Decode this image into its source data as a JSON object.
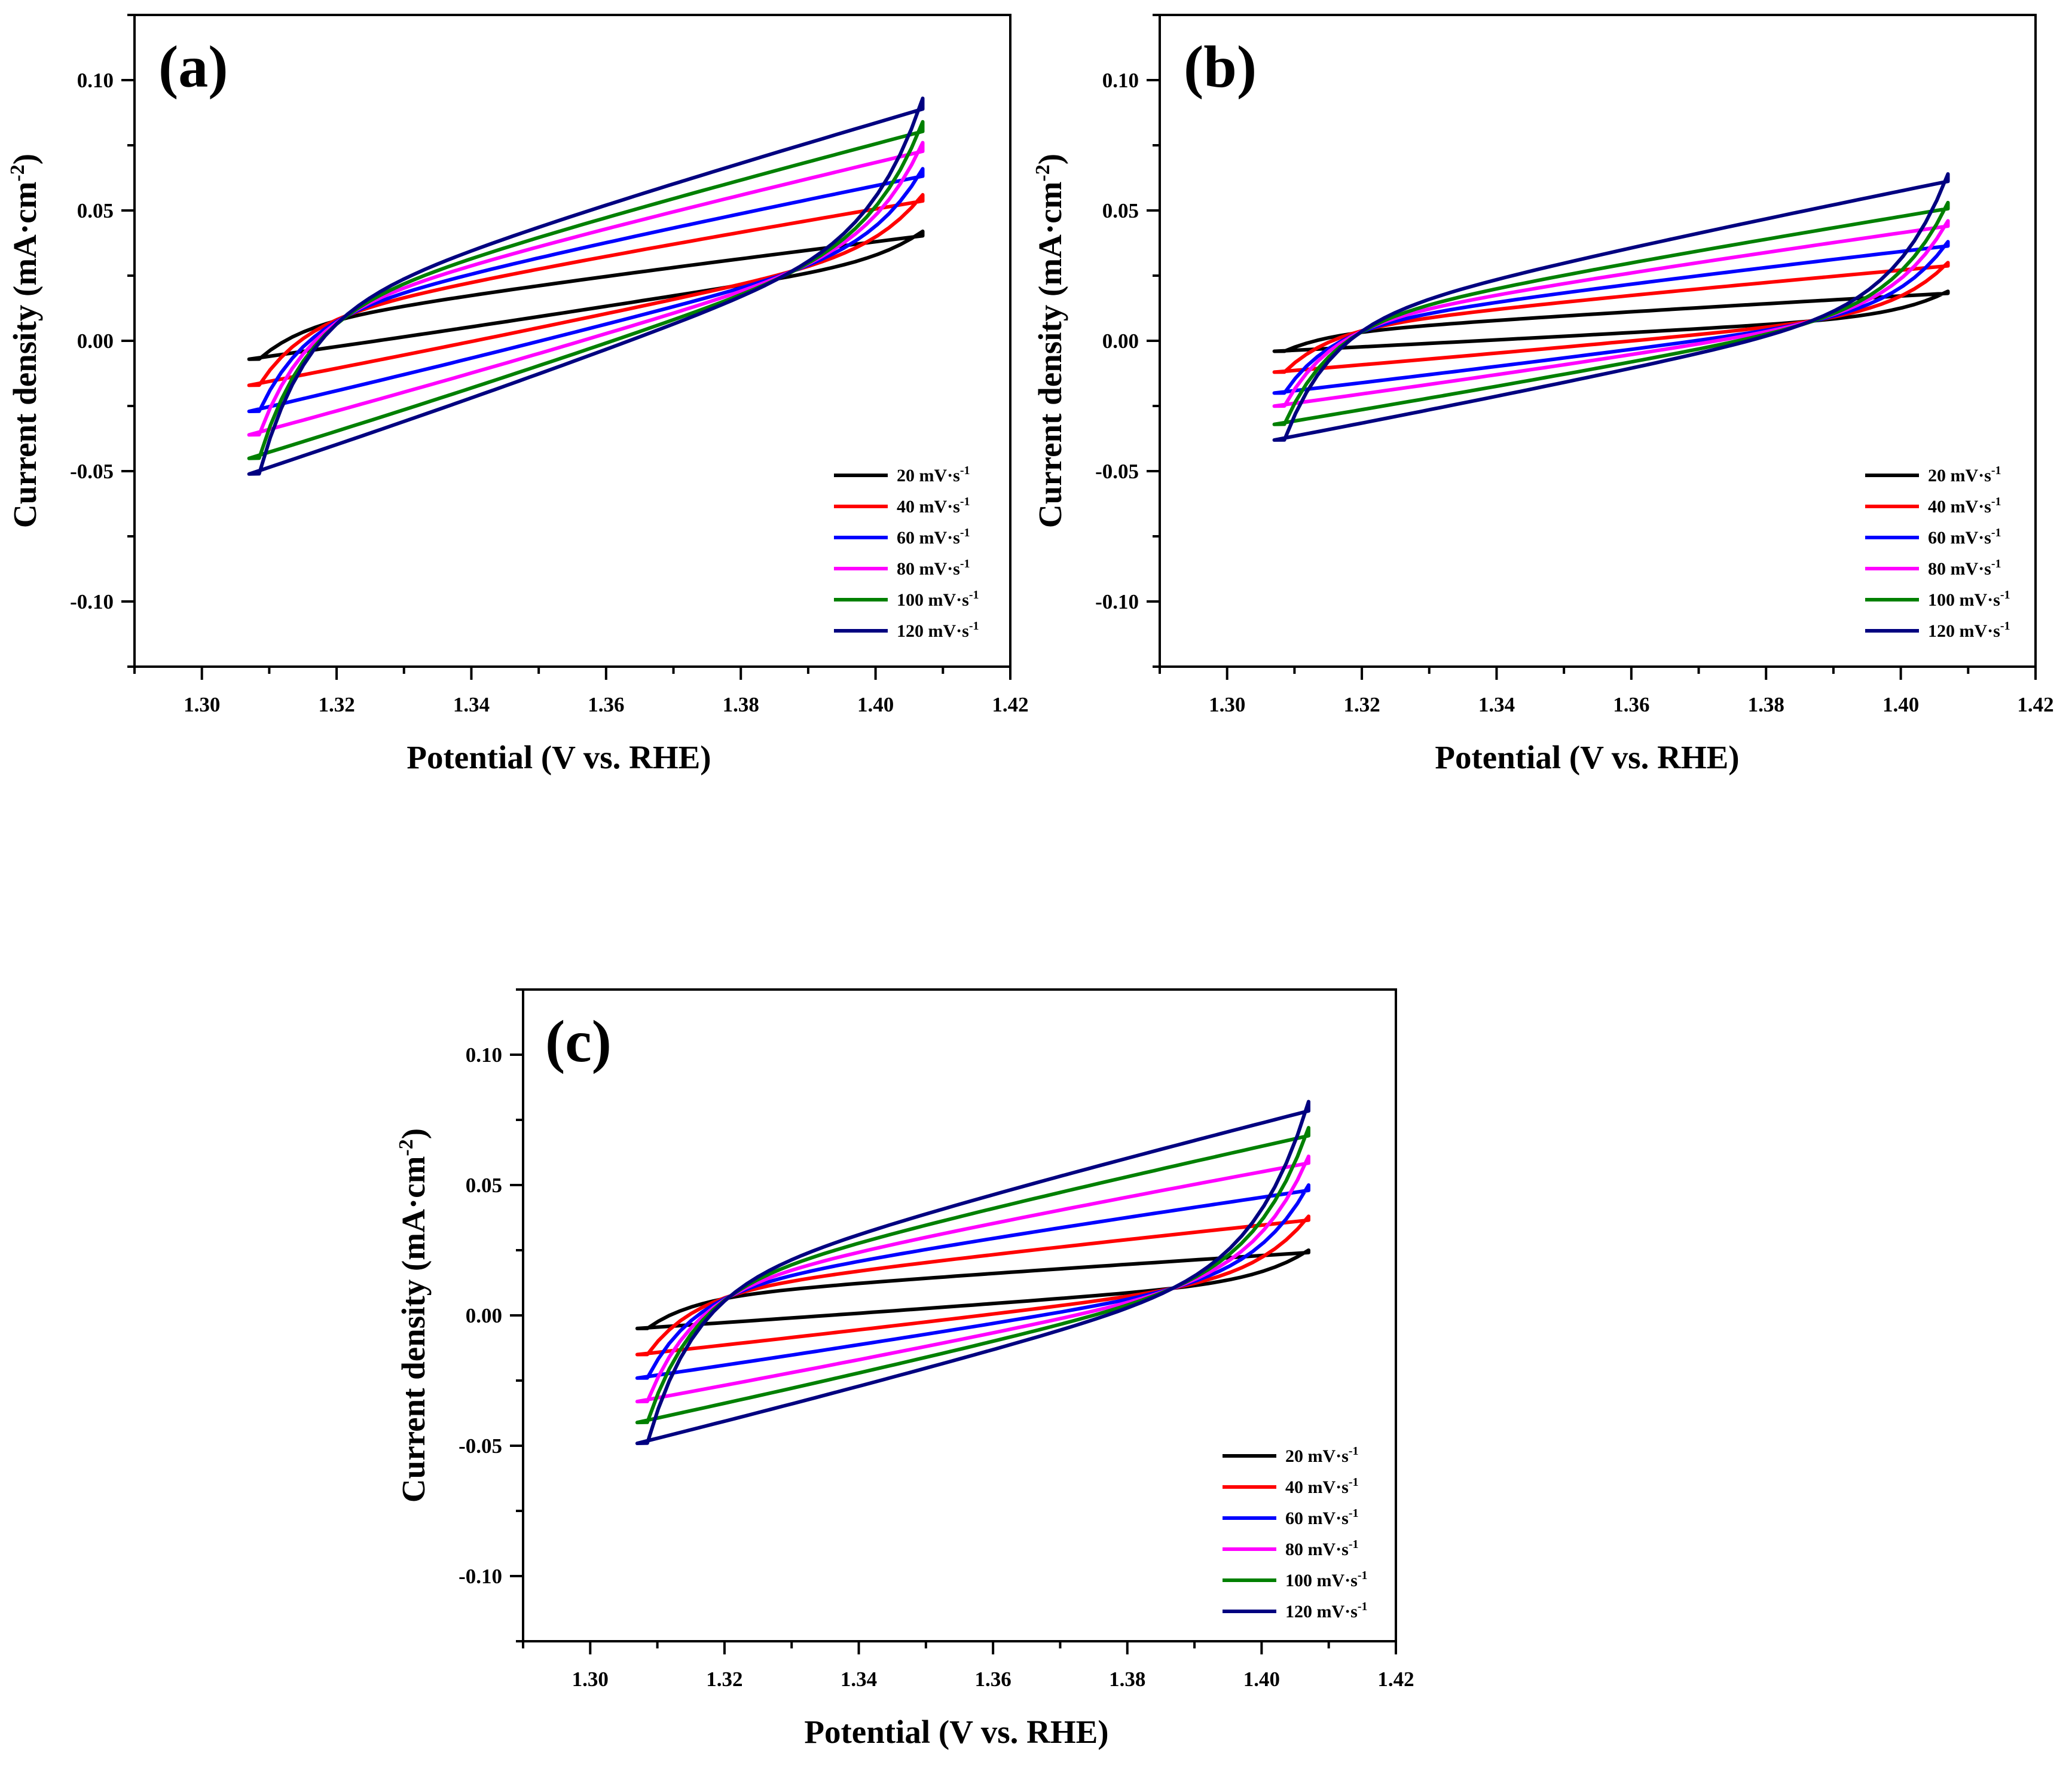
{
  "figure": {
    "colors": {
      "20": "#000000",
      "40": "#ff0000",
      "60": "#0000ff",
      "80": "#ff00ff",
      "100": "#008000",
      "120": "#000080"
    }
  },
  "chart_data": [
    {
      "type": "line",
      "panel": "(a)",
      "title": "",
      "xlabel": "Potential (V vs. RHE)",
      "ylabel": "Current density (mA·cm",
      "ylabel_sup": "-2",
      "ylabel_close": ")",
      "xlim": [
        1.29,
        1.42
      ],
      "ylim": [
        -0.125,
        0.125
      ],
      "xticks": [
        1.3,
        1.32,
        1.34,
        1.36,
        1.38,
        1.4,
        1.42
      ],
      "xtick_labels": [
        "1.30",
        "1.32",
        "1.34",
        "1.36",
        "1.38",
        "1.40",
        "1.42"
      ],
      "yticks": [
        -0.1,
        -0.05,
        0.0,
        0.05,
        0.1
      ],
      "ytick_labels": [
        "-0.10",
        "-0.05",
        "0.00",
        "0.05",
        "0.10"
      ],
      "legend_position": "bottom-right",
      "series": [
        {
          "name": "20 mV·s",
          "sup": "-1",
          "rate": 20,
          "color": "#000000",
          "cathodic_start": -0.007,
          "cathodic_end": 0.027,
          "anodic_end": 0.042,
          "anodic_start": 0.009
        },
        {
          "name": "40 mV·s",
          "sup": "-1",
          "rate": 40,
          "color": "#ff0000",
          "cathodic_start": -0.017,
          "cathodic_end": 0.029,
          "anodic_end": 0.056,
          "anodic_start": 0.011
        },
        {
          "name": "60 mV·s",
          "sup": "-1",
          "rate": 60,
          "color": "#0000ff",
          "cathodic_start": -0.027,
          "cathodic_end": 0.029,
          "anodic_end": 0.066,
          "anodic_start": 0.012
        },
        {
          "name": "80 mV·s",
          "sup": "-1",
          "rate": 80,
          "color": "#ff00ff",
          "cathodic_start": -0.036,
          "cathodic_end": 0.029,
          "anodic_end": 0.076,
          "anodic_start": 0.013
        },
        {
          "name": "100 mV·s",
          "sup": "-1",
          "rate": 100,
          "color": "#008000",
          "cathodic_start": -0.045,
          "cathodic_end": 0.029,
          "anodic_end": 0.084,
          "anodic_start": 0.014
        },
        {
          "name": "120 mV·s",
          "sup": "-1",
          "rate": 120,
          "color": "#000080",
          "cathodic_start": -0.051,
          "cathodic_end": 0.029,
          "anodic_end": 0.093,
          "anodic_start": 0.015
        }
      ]
    },
    {
      "type": "line",
      "panel": "(b)",
      "title": "",
      "xlabel": "Potential (V vs. RHE)",
      "ylabel": "Current density (mA·cm",
      "ylabel_sup": "-2",
      "ylabel_close": ")",
      "xlim": [
        1.29,
        1.42
      ],
      "ylim": [
        -0.125,
        0.125
      ],
      "xticks": [
        1.3,
        1.32,
        1.34,
        1.36,
        1.38,
        1.4,
        1.42
      ],
      "xtick_labels": [
        "1.30",
        "1.32",
        "1.34",
        "1.36",
        "1.38",
        "1.40",
        "1.42"
      ],
      "yticks": [
        -0.1,
        -0.05,
        0.0,
        0.05,
        0.1
      ],
      "ytick_labels": [
        "-0.10",
        "-0.05",
        "0.00",
        "0.05",
        "0.10"
      ],
      "legend_position": "bottom-right",
      "series": [
        {
          "name": "20 mV·s",
          "sup": "-1",
          "rate": 20,
          "color": "#000000",
          "cathodic_start": -0.004,
          "cathodic_end": 0.008,
          "anodic_end": 0.019,
          "anodic_start": 0.004
        },
        {
          "name": "40 mV·s",
          "sup": "-1",
          "rate": 40,
          "color": "#ff0000",
          "cathodic_start": -0.012,
          "cathodic_end": 0.008,
          "anodic_end": 0.03,
          "anodic_start": 0.006
        },
        {
          "name": "60 mV·s",
          "sup": "-1",
          "rate": 60,
          "color": "#0000ff",
          "cathodic_start": -0.02,
          "cathodic_end": 0.008,
          "anodic_end": 0.038,
          "anodic_start": 0.007
        },
        {
          "name": "80 mV·s",
          "sup": "-1",
          "rate": 80,
          "color": "#ff00ff",
          "cathodic_start": -0.025,
          "cathodic_end": 0.008,
          "anodic_end": 0.046,
          "anodic_start": 0.008
        },
        {
          "name": "100 mV·s",
          "sup": "-1",
          "rate": 100,
          "color": "#008000",
          "cathodic_start": -0.032,
          "cathodic_end": 0.008,
          "anodic_end": 0.053,
          "anodic_start": 0.009
        },
        {
          "name": "120 mV·s",
          "sup": "-1",
          "rate": 120,
          "color": "#000080",
          "cathodic_start": -0.038,
          "cathodic_end": 0.008,
          "anodic_end": 0.064,
          "anodic_start": 0.01
        }
      ]
    },
    {
      "type": "line",
      "panel": "(c)",
      "title": "",
      "xlabel": "Potential (V vs. RHE)",
      "ylabel": "Current density (mA·cm",
      "ylabel_sup": "-2",
      "ylabel_close": ")",
      "xlim": [
        1.29,
        1.42
      ],
      "ylim": [
        -0.125,
        0.125
      ],
      "xticks": [
        1.3,
        1.32,
        1.34,
        1.36,
        1.38,
        1.4,
        1.42
      ],
      "xtick_labels": [
        "1.30",
        "1.32",
        "1.34",
        "1.36",
        "1.38",
        "1.40",
        "1.42"
      ],
      "yticks": [
        -0.1,
        -0.05,
        0.0,
        0.05,
        0.1
      ],
      "ytick_labels": [
        "-0.10",
        "-0.05",
        "0.00",
        "0.05",
        "0.10"
      ],
      "legend_position": "bottom-right",
      "series": [
        {
          "name": "20 mV·s",
          "sup": "-1",
          "rate": 20,
          "color": "#000000",
          "cathodic_start": -0.005,
          "cathodic_end": 0.011,
          "anodic_end": 0.025,
          "anodic_start": 0.008
        },
        {
          "name": "40 mV·s",
          "sup": "-1",
          "rate": 40,
          "color": "#ff0000",
          "cathodic_start": -0.015,
          "cathodic_end": 0.011,
          "anodic_end": 0.038,
          "anodic_start": 0.01
        },
        {
          "name": "60 mV·s",
          "sup": "-1",
          "rate": 60,
          "color": "#0000ff",
          "cathodic_start": -0.024,
          "cathodic_end": 0.011,
          "anodic_end": 0.05,
          "anodic_start": 0.011
        },
        {
          "name": "80 mV·s",
          "sup": "-1",
          "rate": 80,
          "color": "#ff00ff",
          "cathodic_start": -0.033,
          "cathodic_end": 0.011,
          "anodic_end": 0.061,
          "anodic_start": 0.012
        },
        {
          "name": "100 mV·s",
          "sup": "-1",
          "rate": 100,
          "color": "#008000",
          "cathodic_start": -0.041,
          "cathodic_end": 0.011,
          "anodic_end": 0.072,
          "anodic_start": 0.013
        },
        {
          "name": "120 mV·s",
          "sup": "-1",
          "rate": 120,
          "color": "#000080",
          "cathodic_start": -0.049,
          "cathodic_end": 0.011,
          "anodic_end": 0.082,
          "anodic_start": 0.014
        }
      ]
    }
  ]
}
